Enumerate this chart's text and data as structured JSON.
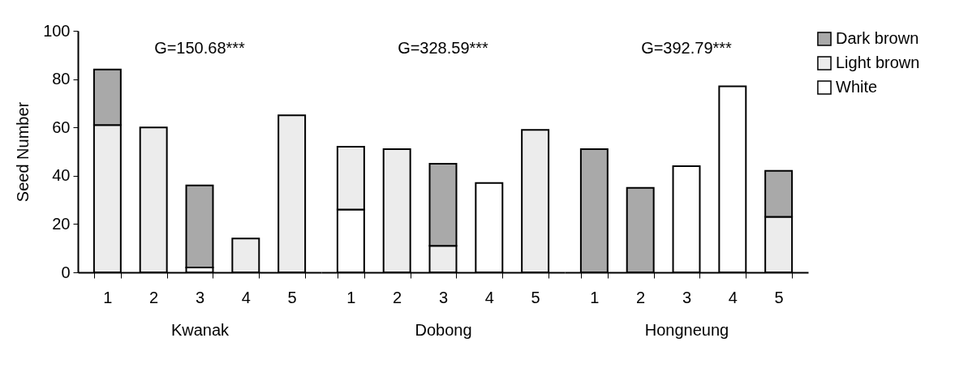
{
  "chart_data": [
    {
      "type": "bar",
      "stacked": true,
      "xlabel": "Kwanak",
      "ylabel": "Seed Number",
      "categories": [
        "1",
        "2",
        "3",
        "4",
        "5"
      ],
      "ylim": [
        0,
        100
      ],
      "yticks": [
        0,
        20,
        40,
        60,
        80,
        100
      ],
      "legend": "top right",
      "annotations": [
        "G=150.68***"
      ],
      "series": [
        {
          "name": "White",
          "color": "#ffffff",
          "values": [
            null,
            null,
            2,
            null,
            null
          ]
        },
        {
          "name": "Light brown",
          "color": "#ececec",
          "values": [
            61,
            60,
            null,
            14,
            65
          ]
        },
        {
          "name": "Dark brown",
          "color": "#a9a9a9",
          "values": [
            23,
            null,
            34,
            null,
            null
          ]
        }
      ]
    },
    {
      "type": "bar",
      "stacked": true,
      "xlabel": "Dobong",
      "categories": [
        "1",
        "2",
        "3",
        "4",
        "5"
      ],
      "ylim": [
        0,
        100
      ],
      "tick_labels": "x",
      "annotations": [
        "G=328.59***"
      ],
      "series": [
        {
          "name": "White",
          "color": "#ffffff",
          "values": [
            26,
            null,
            null,
            37,
            null
          ]
        },
        {
          "name": "Light brown",
          "color": "#ececec",
          "values": [
            26,
            51,
            11,
            null,
            59
          ]
        },
        {
          "name": "Dark brown",
          "color": "#a9a9a9",
          "values": [
            null,
            null,
            34,
            null,
            null
          ]
        }
      ]
    },
    {
      "type": "bar",
      "stacked": true,
      "xlabel": "Hongneung",
      "categories": [
        "1",
        "2",
        "3",
        "4",
        "5"
      ],
      "ylim": [
        0,
        100
      ],
      "tick_labels": "x",
      "annotations": [
        "G=392.79***"
      ],
      "series": [
        {
          "name": "White",
          "color": "#ffffff",
          "values": [
            null,
            null,
            44,
            77,
            null
          ]
        },
        {
          "name": "Light brown",
          "color": "#ececec",
          "values": [
            null,
            null,
            null,
            null,
            23
          ]
        },
        {
          "name": "Dark brown",
          "color": "#a9a9a9",
          "values": [
            51,
            35,
            null,
            null,
            19
          ]
        }
      ]
    }
  ]
}
